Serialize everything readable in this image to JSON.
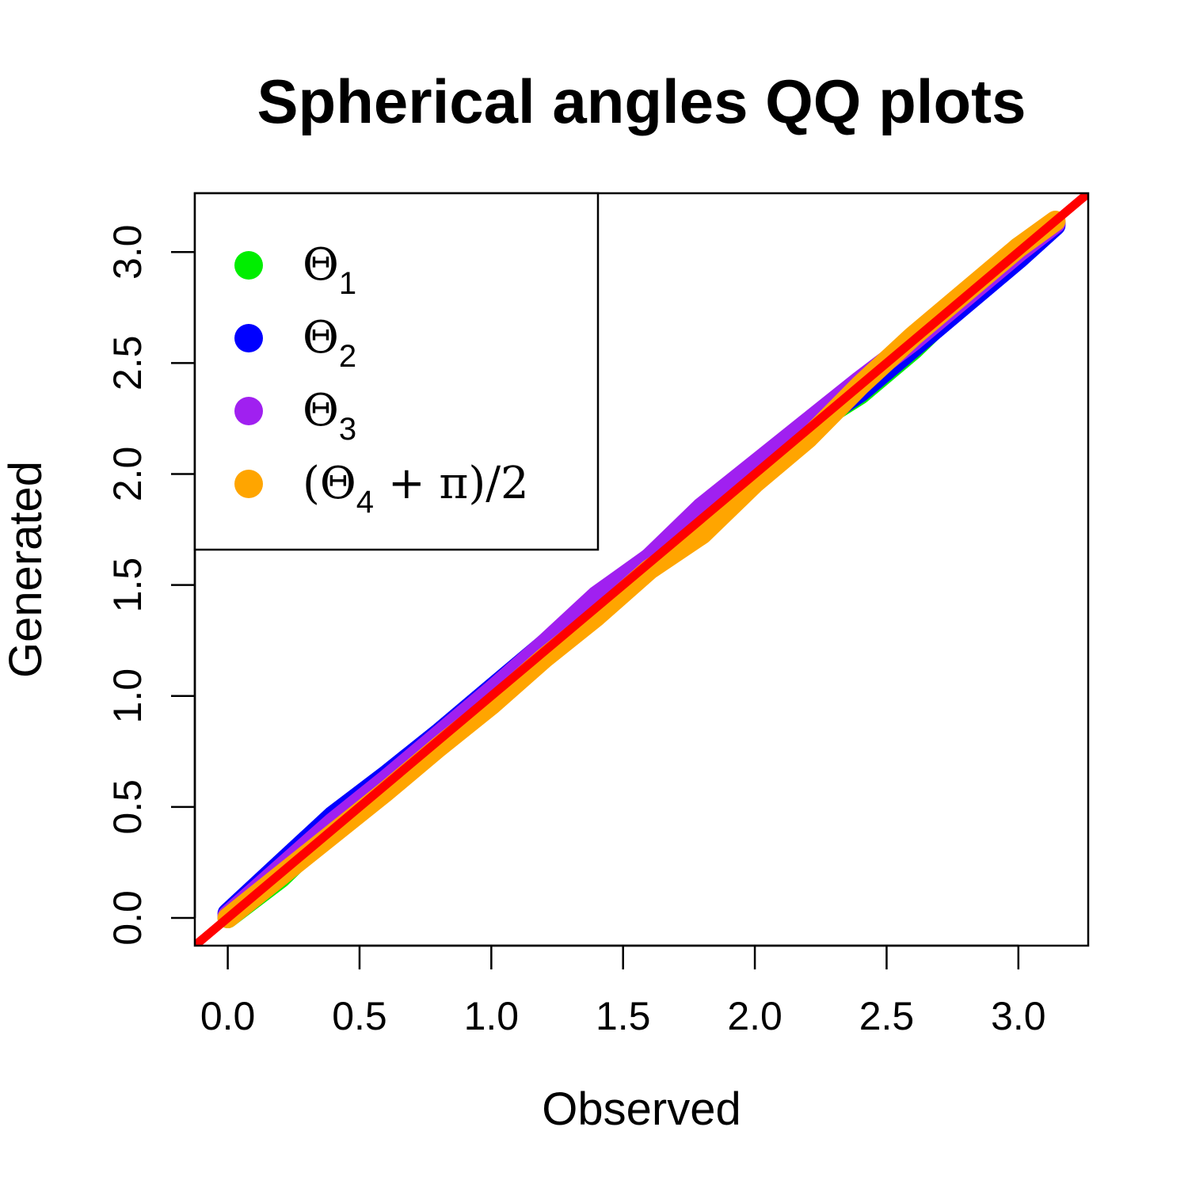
{
  "chart_data": {
    "type": "line",
    "title": "Spherical angles QQ plots",
    "xlabel": "Observed",
    "ylabel": "Generated",
    "xlim": [
      -0.125,
      3.265
    ],
    "ylim": [
      -0.125,
      3.265
    ],
    "xticks": [
      0.0,
      0.5,
      1.0,
      1.5,
      2.0,
      2.5,
      3.0
    ],
    "yticks": [
      0.0,
      0.5,
      1.0,
      1.5,
      2.0,
      2.5,
      3.0
    ],
    "xtick_labels": [
      "0.0",
      "0.5",
      "1.0",
      "1.5",
      "2.0",
      "2.5",
      "3.0"
    ],
    "ytick_labels": [
      "0.0",
      "0.5",
      "1.0",
      "1.5",
      "2.0",
      "2.5",
      "3.0"
    ],
    "grid": false,
    "legend_position": "top-left",
    "series": [
      {
        "legend_main": "Θ",
        "legend_sub": "1",
        "legend_rest": "",
        "color": "#00ee00",
        "x": [
          0.0,
          0.2,
          0.4,
          0.6,
          0.8,
          1.0,
          1.2,
          1.4,
          1.6,
          1.8,
          2.0,
          2.2,
          2.4,
          2.6,
          2.8,
          3.0,
          3.14
        ],
        "y": [
          0.0,
          0.18,
          0.41,
          0.61,
          0.81,
          1.02,
          1.21,
          1.41,
          1.61,
          1.81,
          2.02,
          2.21,
          2.36,
          2.56,
          2.79,
          3.02,
          3.13
        ]
      },
      {
        "legend_main": "Θ",
        "legend_sub": "2",
        "legend_rest": "",
        "color": "#0000ff",
        "x": [
          0.0,
          0.2,
          0.4,
          0.6,
          0.8,
          1.0,
          1.2,
          1.4,
          1.6,
          1.8,
          2.0,
          2.2,
          2.4,
          2.6,
          2.8,
          3.0,
          3.14
        ],
        "y": [
          0.02,
          0.24,
          0.46,
          0.64,
          0.83,
          1.03,
          1.23,
          1.42,
          1.62,
          1.82,
          2.02,
          2.21,
          2.37,
          2.57,
          2.77,
          2.97,
          3.12
        ]
      },
      {
        "legend_main": "Θ",
        "legend_sub": "3",
        "legend_rest": "",
        "color": "#a020f0",
        "x": [
          0.0,
          0.2,
          0.4,
          0.6,
          0.8,
          1.0,
          1.2,
          1.4,
          1.6,
          1.8,
          2.0,
          2.2,
          2.4,
          2.6,
          2.8,
          3.0,
          3.14
        ],
        "y": [
          0.01,
          0.22,
          0.43,
          0.62,
          0.82,
          1.02,
          1.23,
          1.45,
          1.62,
          1.85,
          2.04,
          2.23,
          2.42,
          2.6,
          2.8,
          3.0,
          3.13
        ]
      },
      {
        "legend_main": "(Θ",
        "legend_sub": "4",
        "legend_rest": " + π)/2",
        "color": "#ffa500",
        "x": [
          0.0,
          0.2,
          0.4,
          0.6,
          0.8,
          1.0,
          1.2,
          1.4,
          1.6,
          1.8,
          2.0,
          2.2,
          2.4,
          2.6,
          2.8,
          3.0,
          3.14
        ],
        "y": [
          0.0,
          0.19,
          0.38,
          0.57,
          0.77,
          0.96,
          1.17,
          1.36,
          1.57,
          1.73,
          1.96,
          2.16,
          2.4,
          2.62,
          2.82,
          3.02,
          3.14
        ]
      }
    ],
    "reference_line": {
      "color": "#ff0000",
      "slope": 1,
      "intercept": 0
    }
  }
}
